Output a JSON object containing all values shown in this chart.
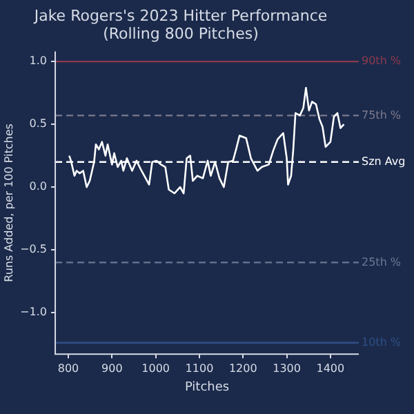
{
  "chart_data": {
    "type": "line",
    "title": "Jake Rogers's 2023 Hitter Performance",
    "subtitle": "(Rolling 800 Pitches)",
    "xlabel": "Pitches",
    "ylabel": "Runs Added, per 100 Pitches",
    "xlim": [
      770,
      1465
    ],
    "xticks": [
      800,
      900,
      1000,
      1100,
      1200,
      1300,
      1400
    ],
    "ylim": [
      -1.33,
      1.08
    ],
    "yticks": [
      {
        "value": -1,
        "label": "−1.0"
      },
      {
        "value": -0.5,
        "label": "−0.5"
      },
      {
        "value": 0,
        "label": "0.0"
      },
      {
        "value": 0.5,
        "label": "0.5"
      },
      {
        "value": 1,
        "label": "1.0"
      }
    ],
    "grid": false,
    "legend": false,
    "marker": "none",
    "line_style": "solid",
    "series": [
      {
        "color": "#ffffff",
        "x": [
          802,
          806,
          814,
          819,
          826,
          834,
          842,
          849,
          859,
          863,
          870,
          877,
          885,
          890,
          900,
          905,
          913,
          921,
          926,
          934,
          946,
          956,
          966,
          974,
          985,
          992,
          1002,
          1012,
          1022,
          1030,
          1043,
          1056,
          1064,
          1071,
          1079,
          1085,
          1095,
          1108,
          1119,
          1126,
          1136,
          1146,
          1156,
          1166,
          1177,
          1184,
          1192,
          1207,
          1218,
          1233,
          1243,
          1259,
          1269,
          1279,
          1292,
          1300,
          1303,
          1310,
          1315,
          1320,
          1330,
          1338,
          1344,
          1351,
          1358,
          1367,
          1375,
          1382,
          1389,
          1400,
          1408,
          1416,
          1423,
          1431
        ],
        "values": [
          0.25,
          0.21,
          0.09,
          0.13,
          0.11,
          0.13,
          0.0,
          0.05,
          0.2,
          0.34,
          0.3,
          0.36,
          0.25,
          0.34,
          0.18,
          0.27,
          0.16,
          0.21,
          0.13,
          0.23,
          0.13,
          0.21,
          0.14,
          0.09,
          0.02,
          0.2,
          0.21,
          0.18,
          0.16,
          -0.02,
          -0.05,
          0.0,
          -0.05,
          0.23,
          0.25,
          0.05,
          0.09,
          0.07,
          0.21,
          0.09,
          0.2,
          0.07,
          0.0,
          0.2,
          0.21,
          0.3,
          0.41,
          0.39,
          0.23,
          0.13,
          0.16,
          0.18,
          0.29,
          0.38,
          0.43,
          0.23,
          0.02,
          0.09,
          0.3,
          0.59,
          0.57,
          0.63,
          0.79,
          0.61,
          0.68,
          0.66,
          0.54,
          0.48,
          0.32,
          0.36,
          0.56,
          0.59,
          0.47,
          0.5
        ]
      }
    ],
    "ref_lines": [
      {
        "axis": "y",
        "value": 1.0,
        "label": "90th %",
        "color": "#8c3a4e",
        "line_style": "solid"
      },
      {
        "axis": "y",
        "value": 0.57,
        "label": "75th %",
        "color": "#7d7a8c",
        "line_style": "dashed"
      },
      {
        "axis": "y",
        "value": 0.2,
        "label": "Szn Avg",
        "color": "#ffffff",
        "line_style": "dashed"
      },
      {
        "axis": "y",
        "value": -0.6,
        "label": "25th %",
        "color": "#6b7893",
        "line_style": "dashed"
      },
      {
        "axis": "y",
        "value": -1.24,
        "label": "10th %",
        "color": "#2f4f86",
        "line_style": "solid"
      }
    ]
  }
}
